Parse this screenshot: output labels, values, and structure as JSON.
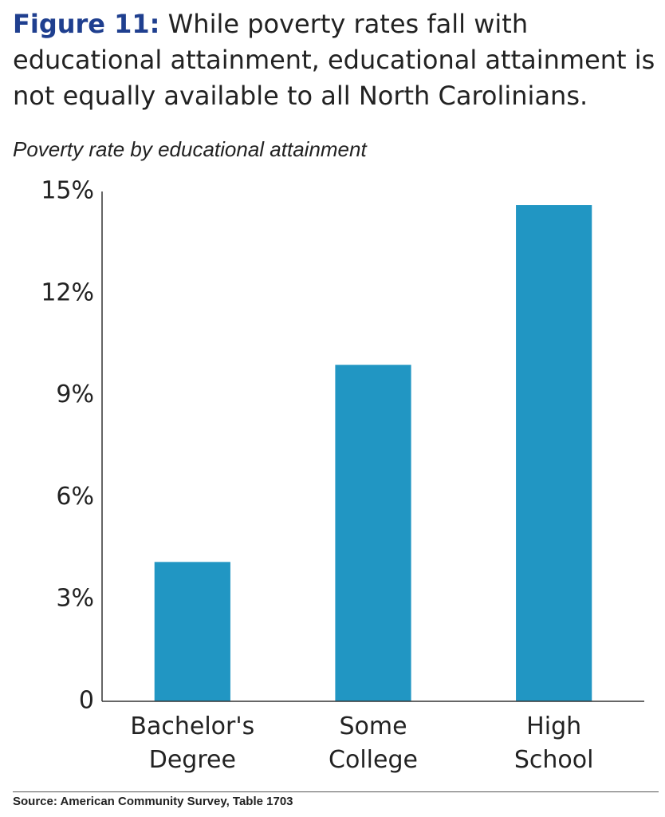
{
  "chart_data": {
    "type": "bar",
    "title_label": "Figure 11:",
    "title": "While poverty rates fall with educational attainment, educational attainment is not equally available to all North Carolinians.",
    "subtitle": "Poverty rate by educational attainment",
    "categories": [
      "Bachelor's Degree",
      "Some College",
      "High School"
    ],
    "values": [
      4.1,
      9.9,
      14.6
    ],
    "color": "#2196c3",
    "ylim": [
      0,
      15
    ],
    "yticks": [
      0,
      {
        "value": 3,
        "label": "3%"
      },
      {
        "value": 6,
        "label": "6%"
      },
      {
        "value": 9,
        "label": "9%"
      },
      {
        "value": 12,
        "label": "12%"
      },
      {
        "value": 15,
        "label": "15%"
      }
    ],
    "grid": false,
    "source": "Source: American Community Survey, Table 1703"
  }
}
